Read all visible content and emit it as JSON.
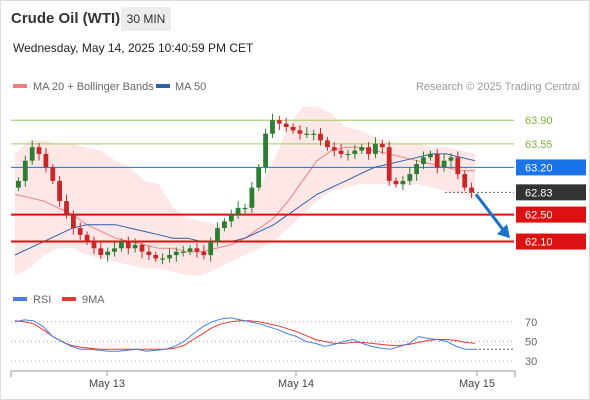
{
  "header": {
    "title": "Crude Oil (WTI)",
    "timeframe": "30 MIN",
    "timestamp": "Wednesday, May 14, 2025 10:40:59 PM CET"
  },
  "legend": {
    "ma20_bb": "MA 20 + Bollinger Bands",
    "ma50": "MA 50",
    "ma20_color": "#f08080",
    "ma50_color": "#2e5fa8"
  },
  "credit": "Research © 2025 Trading Central",
  "chart_data": [
    {
      "type": "candlestick",
      "y_range": [
        61.5,
        64.2
      ],
      "x_ticks": [
        "May 13",
        "May 14",
        "May 15"
      ],
      "grid": false,
      "levels": [
        {
          "label": "63.90",
          "value": 63.9,
          "color": "#9ccc65",
          "kind": "resistance"
        },
        {
          "label": "63.55",
          "value": 63.55,
          "color": "#9ccc65",
          "kind": "resistance"
        },
        {
          "label": "63.20",
          "value": 63.2,
          "color": "#1a73e8",
          "kind": "pivot"
        },
        {
          "label": "62.83",
          "value": 62.83,
          "color": "#333333",
          "kind": "last"
        },
        {
          "label": "62.50",
          "value": 62.5,
          "color": "#dd1111",
          "kind": "support"
        },
        {
          "label": "62.10",
          "value": 62.1,
          "color": "#dd1111",
          "kind": "support"
        }
      ],
      "closes": [
        63.0,
        63.3,
        63.5,
        63.4,
        63.2,
        63.0,
        62.7,
        62.5,
        62.3,
        62.2,
        62.1,
        62.0,
        61.9,
        61.95,
        62.0,
        62.1,
        62.0,
        62.05,
        61.95,
        61.9,
        61.85,
        61.85,
        61.9,
        61.95,
        61.95,
        62.0,
        61.95,
        61.9,
        62.1,
        62.3,
        62.4,
        62.5,
        62.6,
        62.6,
        62.9,
        63.2,
        63.7,
        63.9,
        63.85,
        63.8,
        63.75,
        63.7,
        63.7,
        63.7,
        63.6,
        63.5,
        63.45,
        63.4,
        63.4,
        63.45,
        63.5,
        63.4,
        63.55,
        63.5,
        63.0,
        62.95,
        63.0,
        63.1,
        63.25,
        63.35,
        63.4,
        63.2,
        63.3,
        63.35,
        63.1,
        62.9,
        62.83
      ],
      "ma20": [
        62.8,
        62.75,
        62.7,
        62.6,
        62.5,
        62.35,
        62.25,
        62.15,
        62.1,
        62.05,
        62.0,
        62.0,
        61.95,
        61.95,
        62.0,
        62.05,
        62.15,
        62.3,
        62.45,
        62.7,
        63.0,
        63.3,
        63.45,
        63.5,
        63.5,
        63.45,
        63.4,
        63.35,
        63.3,
        63.25,
        63.2,
        63.15,
        63.15
      ],
      "ma50": [
        61.9,
        62.0,
        62.1,
        62.2,
        62.3,
        62.35,
        62.35,
        62.35,
        62.3,
        62.25,
        62.2,
        62.15,
        62.15,
        62.1,
        62.1,
        62.1,
        62.15,
        62.25,
        62.35,
        62.5,
        62.65,
        62.8,
        62.9,
        63.0,
        63.1,
        63.2,
        63.25,
        63.3,
        63.35,
        63.4,
        63.4,
        63.35,
        63.3
      ],
      "bb_upper": [
        63.4,
        63.6,
        63.6,
        63.55,
        63.55,
        63.5,
        63.45,
        63.3,
        63.2,
        63.0,
        62.95,
        62.6,
        62.45,
        62.4,
        62.35,
        62.4,
        62.6,
        62.9,
        63.3,
        63.8,
        64.1,
        64.1,
        64.0,
        63.8,
        63.75,
        63.65,
        63.55,
        63.55,
        63.55,
        63.5,
        63.5,
        63.45,
        63.4
      ],
      "bb_lower": [
        61.6,
        61.7,
        61.9,
        62.0,
        62.0,
        61.9,
        61.85,
        61.8,
        61.75,
        61.7,
        61.7,
        61.65,
        61.6,
        61.6,
        61.7,
        61.8,
        61.9,
        62.0,
        62.1,
        62.3,
        62.5,
        62.7,
        62.85,
        62.9,
        62.95,
        62.95,
        62.95,
        62.95,
        62.95,
        62.9,
        62.85,
        62.8,
        62.75
      ]
    },
    {
      "type": "line",
      "legend": [
        "RSI",
        "9MA"
      ],
      "colors": {
        "rsi": "#4a7fe0",
        "ma9": "#e53935"
      },
      "y_ticks": [
        "70",
        "50",
        "30"
      ],
      "y_range": [
        25,
        80
      ],
      "rsi": [
        70,
        72,
        71,
        65,
        55,
        50,
        45,
        42,
        42,
        41,
        40,
        40,
        41,
        42,
        40,
        41,
        42,
        45,
        50,
        58,
        65,
        70,
        73,
        74,
        72,
        70,
        68,
        65,
        62,
        58,
        55,
        50,
        48,
        45,
        47,
        50,
        52,
        48,
        45,
        43,
        42,
        45,
        48,
        55,
        53,
        52,
        50,
        45,
        42,
        42
      ],
      "ma9": [
        71,
        70,
        68,
        62,
        55,
        50,
        46,
        44,
        43,
        42,
        42,
        42,
        42,
        42,
        42,
        42,
        42,
        43,
        46,
        52,
        58,
        64,
        68,
        70,
        71,
        71,
        70,
        68,
        66,
        63,
        60,
        56,
        52,
        50,
        48,
        48,
        49,
        49,
        48,
        47,
        46,
        46,
        47,
        49,
        51,
        52,
        52,
        51,
        49,
        48
      ]
    }
  ],
  "colors": {
    "up": "#2e7d32",
    "down": "#c62828",
    "band": "#fbd3d3",
    "arrow": "#1a6fc9"
  }
}
